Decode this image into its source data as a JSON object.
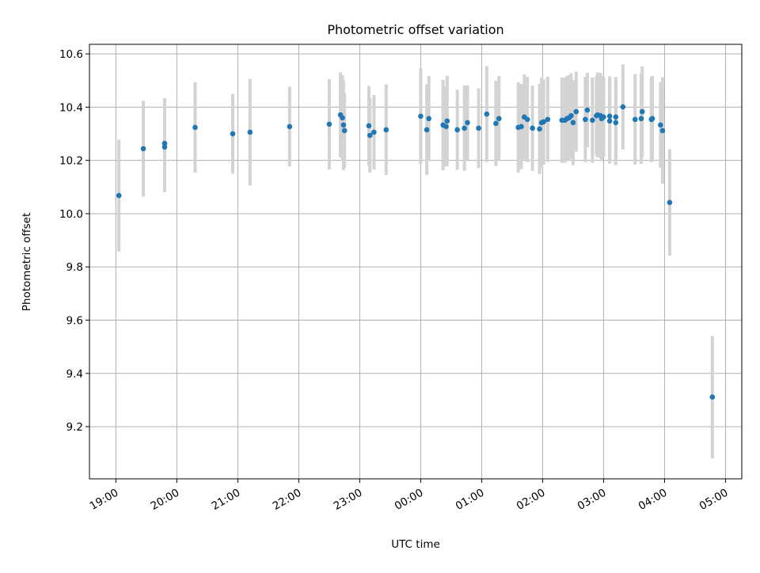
{
  "chart_data": {
    "type": "scatter",
    "title": "Photometric offset variation",
    "xlabel": "UTC time",
    "ylabel": "Photometric offset",
    "grid": true,
    "xlim_minutes_after_1900": [
      -26,
      616
    ],
    "ylim": [
      9.004,
      10.636
    ],
    "xticks": [
      "19:00",
      "20:00",
      "21:00",
      "22:00",
      "23:00",
      "00:00",
      "01:00",
      "02:00",
      "03:00",
      "04:00",
      "05:00"
    ],
    "yticks": [
      "9.2",
      "9.4",
      "9.6",
      "9.8",
      "10.0",
      "10.2",
      "10.4",
      "10.6"
    ],
    "colors": {
      "point": "#1f77b4",
      "errorbar": "#d3d3d3",
      "grid": "#b0b0b0"
    },
    "points": [
      [
        "19:03",
        10.068,
        0.21
      ],
      [
        "19:27",
        10.244,
        0.18
      ],
      [
        "19:48",
        10.25,
        0.17
      ],
      [
        "19:48",
        10.264,
        0.17
      ],
      [
        "20:18",
        10.324,
        0.17
      ],
      [
        "20:55",
        10.3,
        0.15
      ],
      [
        "21:12",
        10.306,
        0.2
      ],
      [
        "21:51",
        10.327,
        0.15
      ],
      [
        "22:30",
        10.336,
        0.17
      ],
      [
        "22:41",
        10.371,
        0.16
      ],
      [
        "22:43",
        10.36,
        0.16
      ],
      [
        "22:44",
        10.333,
        0.17
      ],
      [
        "22:45",
        10.312,
        0.14
      ],
      [
        "23:09",
        10.33,
        0.15
      ],
      [
        "23:10",
        10.294,
        0.14
      ],
      [
        "23:14",
        10.306,
        0.14
      ],
      [
        "23:26",
        10.315,
        0.17
      ],
      [
        "00:00",
        10.366,
        0.18
      ],
      [
        "00:06",
        10.315,
        0.17
      ],
      [
        "00:08",
        10.357,
        0.16
      ],
      [
        "00:22",
        10.333,
        0.17
      ],
      [
        "00:25",
        10.327,
        0.15
      ],
      [
        "00:26",
        10.348,
        0.17
      ],
      [
        "00:36",
        10.315,
        0.15
      ],
      [
        "00:43",
        10.321,
        0.16
      ],
      [
        "00:46",
        10.342,
        0.14
      ],
      [
        "00:57",
        10.321,
        0.15
      ],
      [
        "01:05",
        10.374,
        0.18
      ],
      [
        "01:14",
        10.339,
        0.16
      ],
      [
        "01:17",
        10.357,
        0.16
      ],
      [
        "01:36",
        10.324,
        0.17
      ],
      [
        "01:39",
        10.327,
        0.16
      ],
      [
        "01:42",
        10.363,
        0.16
      ],
      [
        "01:45",
        10.354,
        0.16
      ],
      [
        "01:50",
        10.321,
        0.16
      ],
      [
        "01:57",
        10.318,
        0.17
      ],
      [
        "01:59",
        10.342,
        0.17
      ],
      [
        "02:01",
        10.345,
        0.16
      ],
      [
        "02:05",
        10.354,
        0.16
      ],
      [
        "02:19",
        10.351,
        0.16
      ],
      [
        "02:22",
        10.351,
        0.16
      ],
      [
        "02:24",
        10.357,
        0.16
      ],
      [
        "02:26",
        10.36,
        0.16
      ],
      [
        "02:28",
        10.368,
        0.16
      ],
      [
        "02:30",
        10.342,
        0.16
      ],
      [
        "02:33",
        10.383,
        0.15
      ],
      [
        "02:42",
        10.354,
        0.16
      ],
      [
        "02:44",
        10.389,
        0.14
      ],
      [
        "02:49",
        10.351,
        0.16
      ],
      [
        "02:53",
        10.368,
        0.15
      ],
      [
        "02:54",
        10.371,
        0.16
      ],
      [
        "02:57",
        10.368,
        0.16
      ],
      [
        "02:58",
        10.357,
        0.16
      ],
      [
        "03:00",
        10.363,
        0.15
      ],
      [
        "03:06",
        10.348,
        0.16
      ],
      [
        "03:06",
        10.366,
        0.15
      ],
      [
        "03:12",
        10.342,
        0.16
      ],
      [
        "03:12",
        10.363,
        0.15
      ],
      [
        "03:19",
        10.401,
        0.16
      ],
      [
        "03:31",
        10.354,
        0.17
      ],
      [
        "03:37",
        10.357,
        0.17
      ],
      [
        "03:38",
        10.383,
        0.17
      ],
      [
        "03:47",
        10.354,
        0.16
      ],
      [
        "03:48",
        10.357,
        0.16
      ],
      [
        "03:56",
        10.333,
        0.16
      ],
      [
        "03:58",
        10.312,
        0.2
      ],
      [
        "04:05",
        10.042,
        0.2
      ],
      [
        "04:47",
        9.311,
        0.23
      ]
    ]
  }
}
